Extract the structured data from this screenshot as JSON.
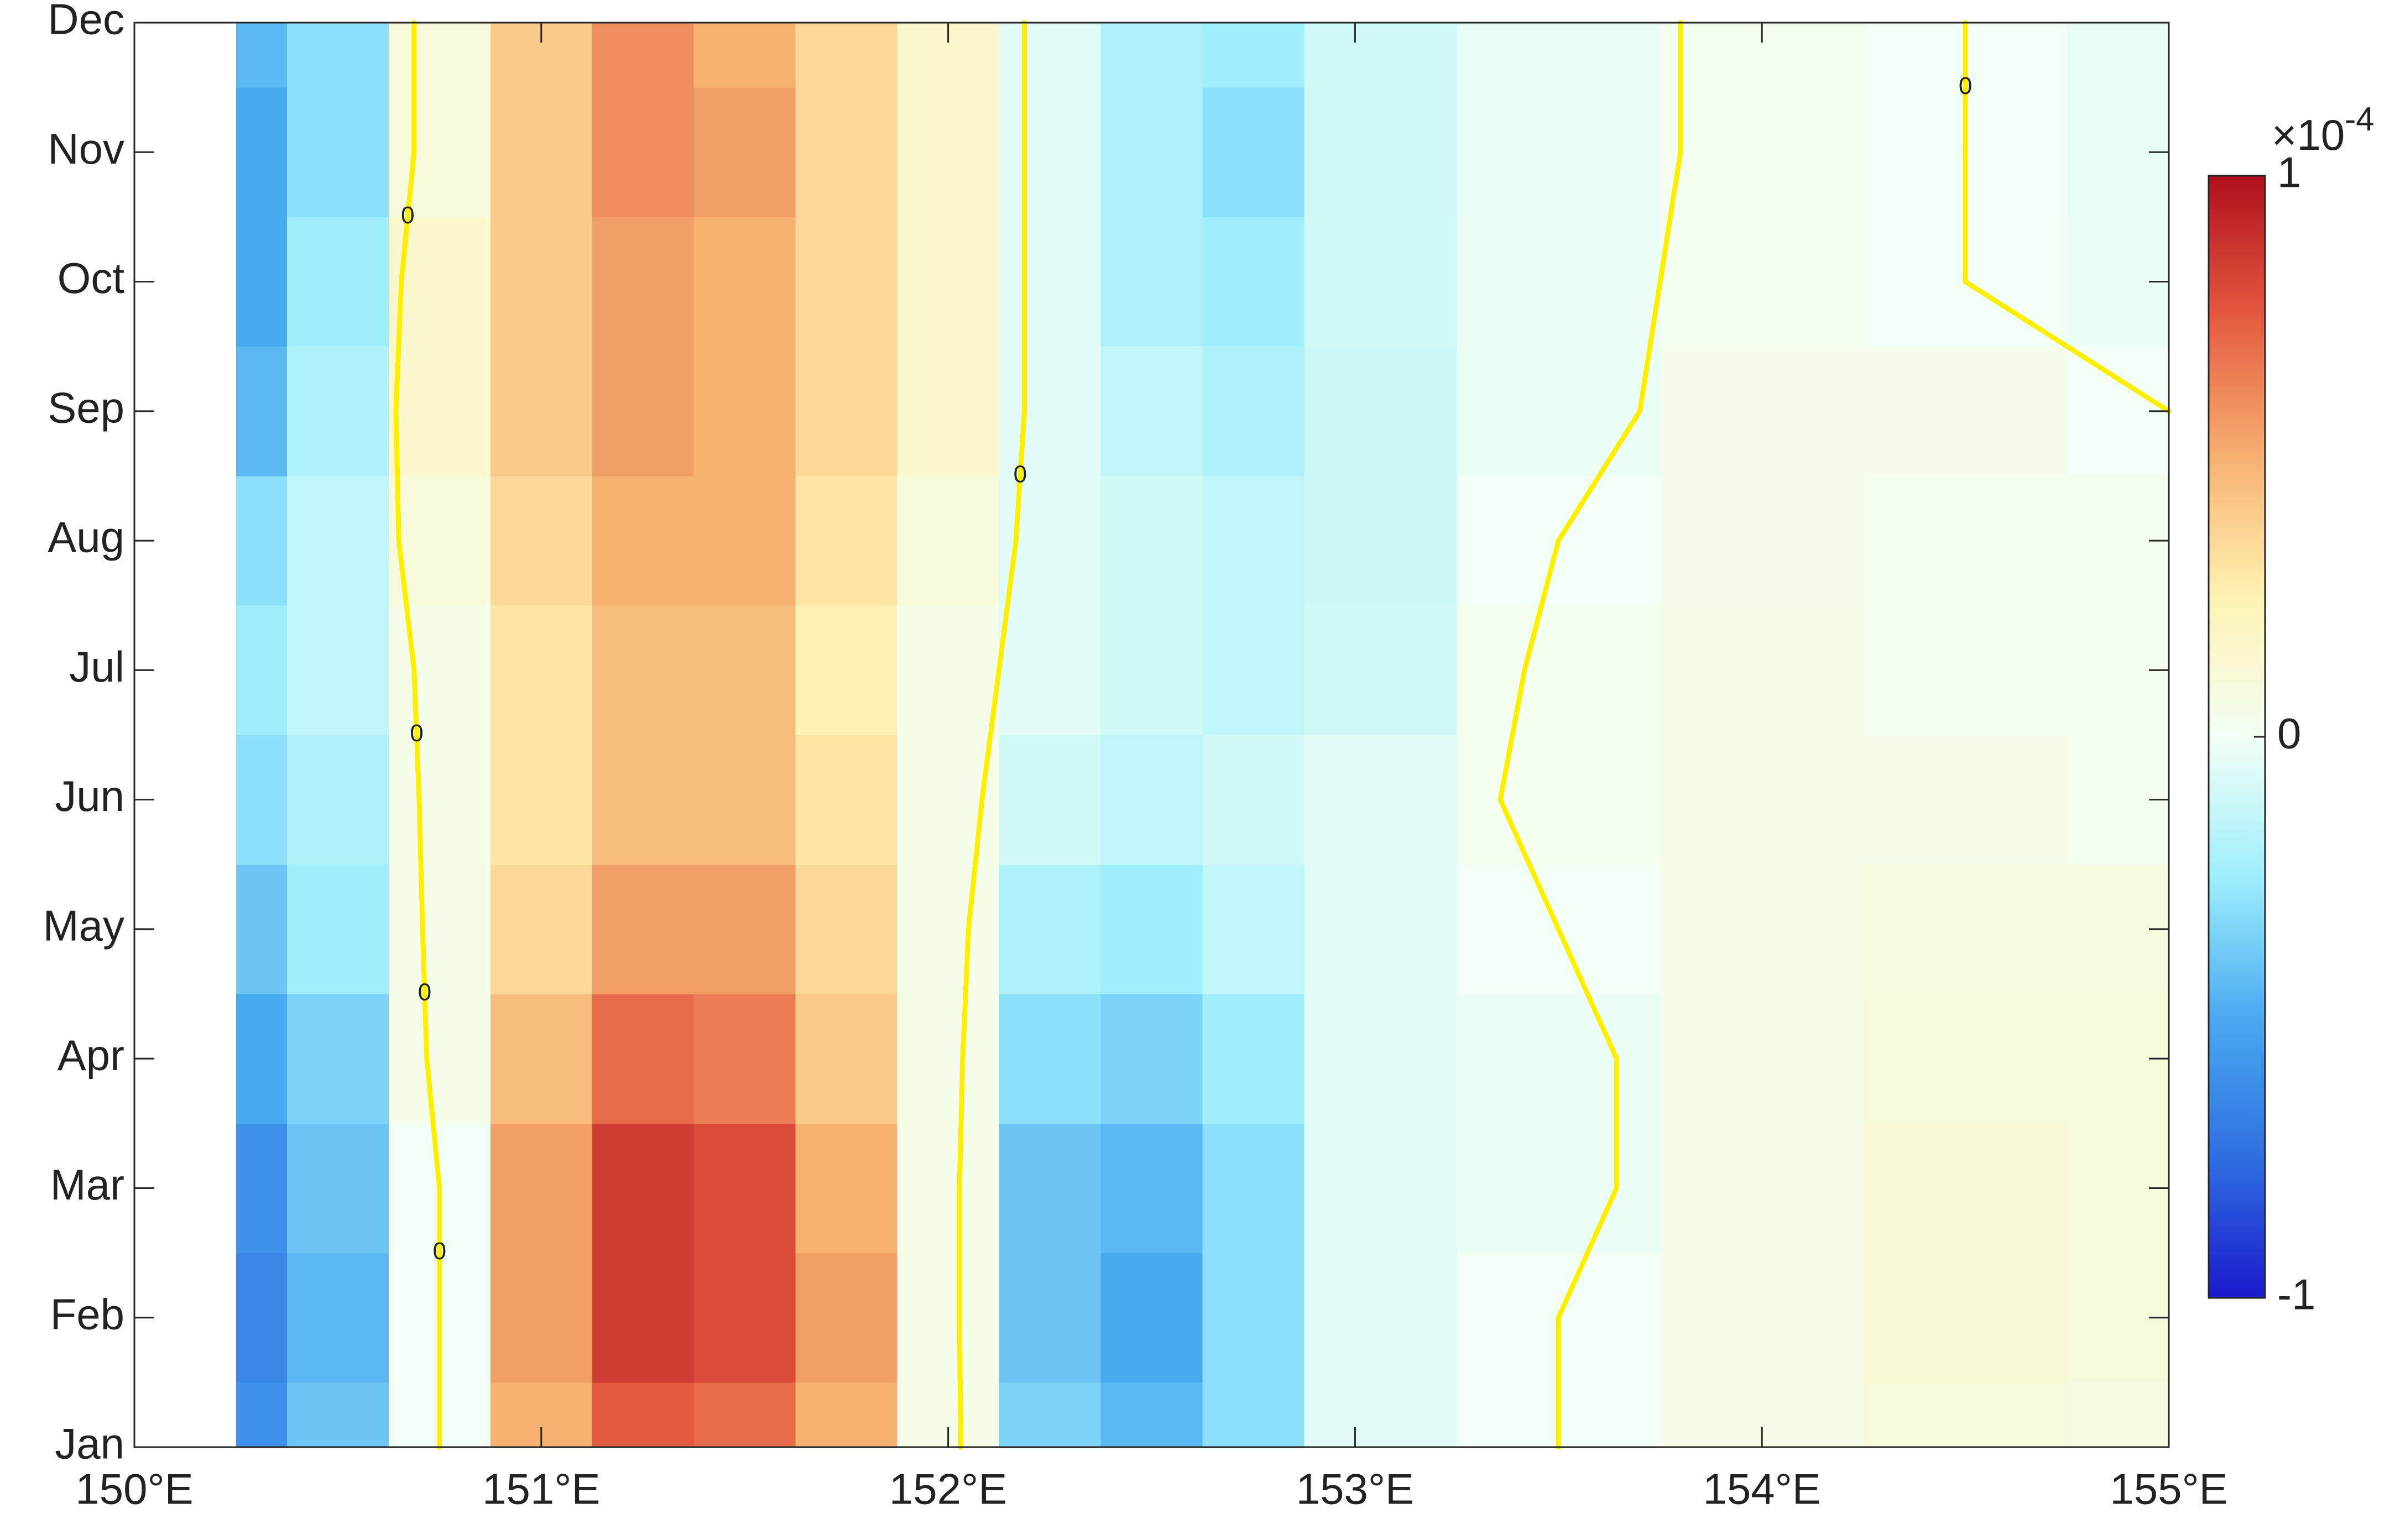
{
  "chart_data": {
    "type": "heatmap",
    "x": [
      150.25,
      150.5,
      150.75,
      151,
      151.25,
      151.5,
      151.75,
      152,
      152.25,
      152.5,
      152.75,
      153,
      153.5,
      154,
      154.5,
      155
    ],
    "categories": [
      "Jan",
      "Feb",
      "Mar",
      "Apr",
      "May",
      "Jun",
      "Jul",
      "Aug",
      "Sep",
      "Oct",
      "Nov",
      "Dec"
    ],
    "values": [
      [
        -0.6,
        -0.4,
        0.0,
        0.5,
        0.75,
        0.7,
        0.5,
        0.05,
        -0.35,
        -0.45,
        -0.3,
        -0.05,
        0.0,
        0.05,
        0.1,
        0.08
      ],
      [
        -0.65,
        -0.45,
        0.0,
        0.55,
        0.85,
        0.8,
        0.55,
        0.05,
        -0.4,
        -0.5,
        -0.3,
        -0.05,
        0.0,
        0.05,
        0.12,
        0.1
      ],
      [
        -0.6,
        -0.4,
        0.0,
        0.55,
        0.85,
        0.8,
        0.5,
        0.05,
        -0.4,
        -0.45,
        -0.3,
        -0.05,
        -0.02,
        0.05,
        0.12,
        0.1
      ],
      [
        -0.5,
        -0.35,
        0.05,
        0.45,
        0.7,
        0.65,
        0.4,
        0.05,
        -0.3,
        -0.35,
        -0.25,
        -0.05,
        -0.02,
        0.05,
        0.1,
        0.1
      ],
      [
        -0.4,
        -0.25,
        0.05,
        0.35,
        0.55,
        0.55,
        0.35,
        0.05,
        -0.2,
        -0.25,
        -0.15,
        -0.05,
        0.0,
        0.05,
        0.08,
        0.08
      ],
      [
        -0.3,
        -0.2,
        0.05,
        0.3,
        0.45,
        0.45,
        0.3,
        0.05,
        -0.1,
        -0.15,
        -0.1,
        -0.05,
        0.02,
        0.05,
        0.05,
        0.02
      ],
      [
        -0.25,
        -0.15,
        0.05,
        0.3,
        0.45,
        0.45,
        0.25,
        0.05,
        -0.05,
        -0.1,
        -0.15,
        -0.1,
        0.02,
        0.05,
        0.02,
        0.02
      ],
      [
        -0.3,
        -0.15,
        0.1,
        0.35,
        0.5,
        0.5,
        0.3,
        0.1,
        -0.05,
        -0.1,
        -0.15,
        -0.12,
        0.0,
        0.03,
        0.02,
        0.02
      ],
      [
        -0.45,
        -0.2,
        0.15,
        0.4,
        0.55,
        0.5,
        0.35,
        0.15,
        -0.05,
        -0.15,
        -0.2,
        -0.12,
        -0.02,
        0.03,
        0.03,
        0.0
      ],
      [
        -0.5,
        -0.25,
        0.15,
        0.4,
        0.55,
        0.5,
        0.35,
        0.15,
        -0.05,
        -0.2,
        -0.25,
        -0.1,
        -0.02,
        0.02,
        0.0,
        -0.02
      ],
      [
        -0.5,
        -0.3,
        0.1,
        0.4,
        0.6,
        0.55,
        0.35,
        0.15,
        -0.05,
        -0.2,
        -0.3,
        -0.1,
        -0.03,
        0.02,
        0.0,
        -0.03
      ],
      [
        -0.45,
        -0.3,
        0.1,
        0.4,
        0.6,
        0.5,
        0.35,
        0.15,
        -0.05,
        -0.2,
        -0.25,
        -0.1,
        -0.03,
        0.02,
        0.0,
        -0.03
      ]
    ],
    "xlim": [
      150,
      155
    ],
    "xticks": [
      {
        "value": 150,
        "label": "150°E"
      },
      {
        "value": 151,
        "label": "151°E"
      },
      {
        "value": 152,
        "label": "152°E"
      },
      {
        "value": 153,
        "label": "153°E"
      },
      {
        "value": 154,
        "label": "154°E"
      },
      {
        "value": 155,
        "label": "155°E"
      }
    ],
    "clim": [
      -1,
      1
    ],
    "cticks": [
      -1,
      0,
      1
    ],
    "colorbar_multiplier": "×10",
    "colorbar_exponent": "-4",
    "colormap": [
      "#1a1acc",
      "#2f6fe0",
      "#4aaaf0",
      "#9eeefc",
      "#f2fff4",
      "#fff2b2",
      "#f6b070",
      "#e45a40",
      "#b0101c"
    ],
    "zero_contour": {
      "level": 0,
      "color": "#ffee00"
    }
  }
}
